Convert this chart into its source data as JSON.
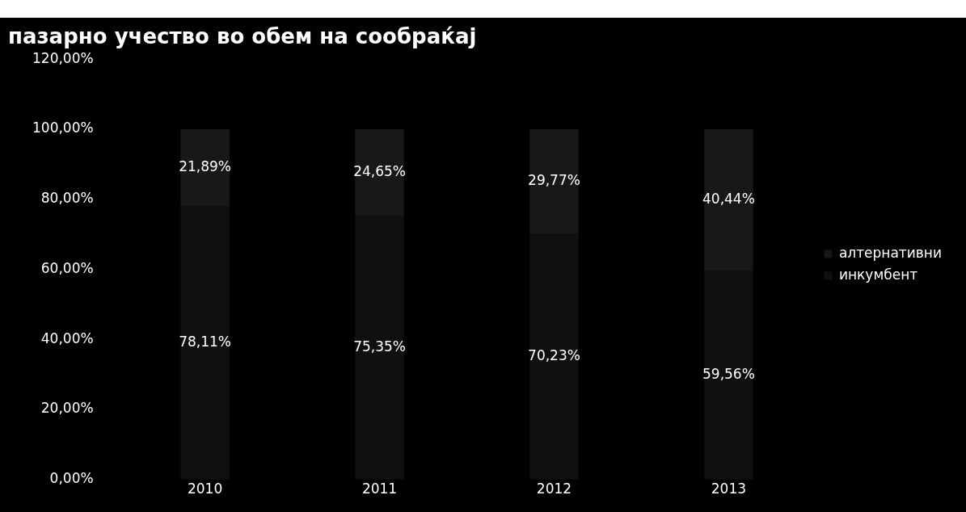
{
  "chart_data": {
    "type": "bar",
    "title": "пазарно учество во обем на сообраќај",
    "categories": [
      "2010",
      "2011",
      "2012",
      "2013"
    ],
    "stacked": true,
    "series": [
      {
        "name": "инкумбент",
        "color": "#101010",
        "values": [
          78.11,
          75.35,
          70.23,
          59.56
        ],
        "value_labels": [
          "78,11%",
          "75,35%",
          "70,23%",
          "59,56%"
        ]
      },
      {
        "name": "алтернативни",
        "color": "#181818",
        "values": [
          21.89,
          24.65,
          29.77,
          40.44
        ],
        "value_labels": [
          "21,89%",
          "24,65%",
          "29,77%",
          "40,44%"
        ]
      }
    ],
    "ylim": [
      0,
      120
    ],
    "yticks": [
      {
        "value": 0,
        "label": "0,00%"
      },
      {
        "value": 20,
        "label": "20,00%"
      },
      {
        "value": 40,
        "label": "40,00%"
      },
      {
        "value": 60,
        "label": "60,00%"
      },
      {
        "value": 80,
        "label": "80,00%"
      },
      {
        "value": 100,
        "label": "100,00%"
      },
      {
        "value": 120,
        "label": "120,00%"
      }
    ],
    "grid": false,
    "legend": "right"
  }
}
